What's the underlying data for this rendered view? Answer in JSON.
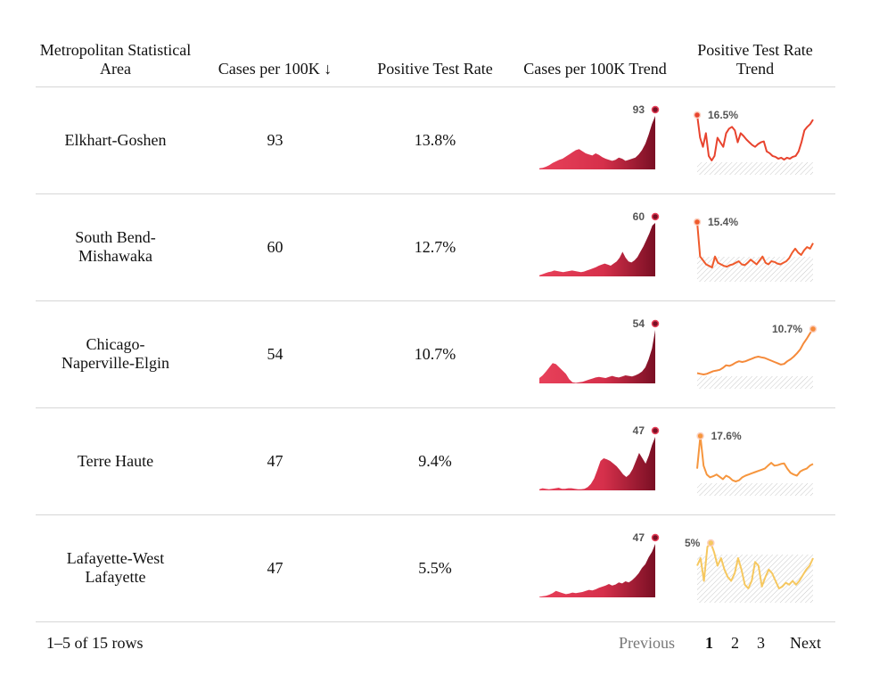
{
  "table": {
    "headers": {
      "msa": "Metropolitan Statistical Area",
      "cases": "Cases per 100K ↓",
      "positive_rate": "Positive Test Rate",
      "cases_trend": "Cases per 100K Trend",
      "rate_trend": "Positive Test Rate Trend"
    },
    "rows": [
      {
        "name": "Elkhart-Goshen",
        "cases": "93",
        "rate": "13.8%",
        "case_label": "93",
        "rate_label": "16.5%",
        "rate_color": "#e8432e",
        "rate_label_pos": "start",
        "case_series": [
          2,
          3,
          5,
          8,
          12,
          15,
          18,
          20,
          24,
          28,
          32,
          36,
          38,
          34,
          30,
          28,
          26,
          30,
          27,
          23,
          20,
          18,
          16,
          18,
          22,
          20,
          16,
          18,
          20,
          22,
          28,
          36,
          48,
          65,
          85,
          100
        ],
        "rate_series": [
          16.5,
          14,
          13,
          14.5,
          12,
          11.5,
          12,
          14,
          13.5,
          13,
          14.5,
          15,
          15.2,
          14.8,
          13.5,
          14.5,
          14.2,
          13.8,
          13.5,
          13.2,
          13,
          13.3,
          13.5,
          13.6,
          12.5,
          12.3,
          12,
          11.9,
          11.7,
          11.8,
          11.6,
          11.8,
          11.7,
          11.9,
          12,
          12.5,
          13.5,
          14.8,
          15.2,
          15.5,
          16
        ]
      },
      {
        "name": "South Bend-Mishawaka",
        "cases": "60",
        "rate": "12.7%",
        "case_label": "60",
        "rate_label": "15.4%",
        "rate_color": "#ef5a2c",
        "rate_label_pos": "start",
        "case_series": [
          2,
          4,
          6,
          8,
          9,
          11,
          10,
          9,
          8,
          9,
          10,
          11,
          10,
          9,
          8,
          9,
          11,
          13,
          15,
          17,
          20,
          22,
          24,
          22,
          20,
          24,
          28,
          35,
          46,
          35,
          28,
          26,
          30,
          36,
          46,
          56,
          68,
          80,
          95,
          100
        ],
        "rate_series": [
          15.4,
          11,
          10.5,
          10,
          9.8,
          9.6,
          11,
          10.2,
          10,
          9.8,
          9.7,
          9.9,
          10,
          10.2,
          10.4,
          10,
          9.9,
          10.2,
          10.6,
          10.3,
          10,
          10.5,
          11,
          10.2,
          10,
          10.4,
          10.3,
          10.1,
          10,
          10.2,
          10.4,
          10.8,
          11.5,
          12,
          11.5,
          11.2,
          11.8,
          12.2,
          12,
          12.7
        ]
      },
      {
        "name": "Chicago-Naperville-Elgin",
        "cases": "54",
        "rate": "10.7%",
        "case_label": "54",
        "rate_label": "10.7%",
        "rate_color": "#f58a3a",
        "rate_label_pos": "end",
        "case_series": [
          10,
          15,
          22,
          30,
          38,
          36,
          30,
          24,
          18,
          8,
          2,
          1,
          2,
          3,
          5,
          7,
          9,
          11,
          12,
          11,
          10,
          12,
          14,
          12,
          11,
          13,
          15,
          14,
          13,
          15,
          18,
          22,
          30,
          45,
          65,
          100
        ],
        "rate_series": [
          4,
          3.9,
          3.8,
          3.9,
          4.1,
          4.3,
          4.4,
          4.5,
          4.8,
          5.2,
          5.1,
          5.3,
          5.6,
          5.8,
          5.7,
          5.8,
          6,
          6.2,
          6.4,
          6.5,
          6.4,
          6.3,
          6.1,
          5.9,
          5.7,
          5.5,
          5.3,
          5.4,
          5.8,
          6.1,
          6.5,
          7,
          7.6,
          8.5,
          9.2,
          10,
          10.7
        ]
      },
      {
        "name": "Terre Haute",
        "cases": "47",
        "rate": "9.4%",
        "case_label": "47",
        "rate_label": "17.6%",
        "rate_color": "#f6963e",
        "rate_label_pos": "start",
        "case_series": [
          2,
          4,
          3,
          2,
          3,
          4,
          5,
          3,
          3,
          4,
          4,
          3,
          2,
          2,
          3,
          6,
          12,
          22,
          38,
          55,
          60,
          58,
          55,
          50,
          45,
          38,
          30,
          25,
          30,
          40,
          55,
          70,
          60,
          50,
          65,
          85,
          100
        ],
        "rate_series": [
          12,
          17.6,
          12.5,
          11,
          10.5,
          10.7,
          11,
          10.6,
          10.2,
          10.8,
          10.5,
          10,
          9.8,
          10,
          10.5,
          10.8,
          11,
          11.2,
          11.4,
          11.6,
          11.8,
          12,
          12.5,
          13,
          12.5,
          12.6,
          12.8,
          12.9,
          12,
          11.3,
          11,
          10.8,
          11.5,
          11.8,
          12,
          12.5,
          12.8
        ]
      },
      {
        "name": "Lafayette-West Lafayette",
        "cases": "47",
        "rate": "5.5%",
        "case_label": "47",
        "rate_label": "5%",
        "rate_color": "#f6c860",
        "rate_label_pos": "start",
        "case_series": [
          1,
          2,
          3,
          5,
          8,
          12,
          10,
          8,
          6,
          7,
          9,
          8,
          9,
          10,
          12,
          14,
          13,
          15,
          18,
          20,
          22,
          25,
          22,
          24,
          28,
          26,
          30,
          28,
          32,
          38,
          45,
          55,
          62,
          75,
          85,
          100
        ],
        "rate_series": [
          3.8,
          4.2,
          3,
          4.8,
          5,
          4.5,
          3.8,
          4.2,
          3.6,
          3.2,
          3,
          3.4,
          4.2,
          3.6,
          2.8,
          2.6,
          3,
          4,
          3.8,
          2.7,
          3.2,
          3.6,
          3.4,
          3,
          2.6,
          2.7,
          2.9,
          2.8,
          3,
          2.8,
          3,
          3.3,
          3.6,
          3.8,
          4.2
        ]
      }
    ]
  },
  "footer": {
    "row_count": "1–5 of 15 rows",
    "previous": "Previous",
    "pages": [
      "1",
      "2",
      "3"
    ],
    "next": "Next"
  }
}
